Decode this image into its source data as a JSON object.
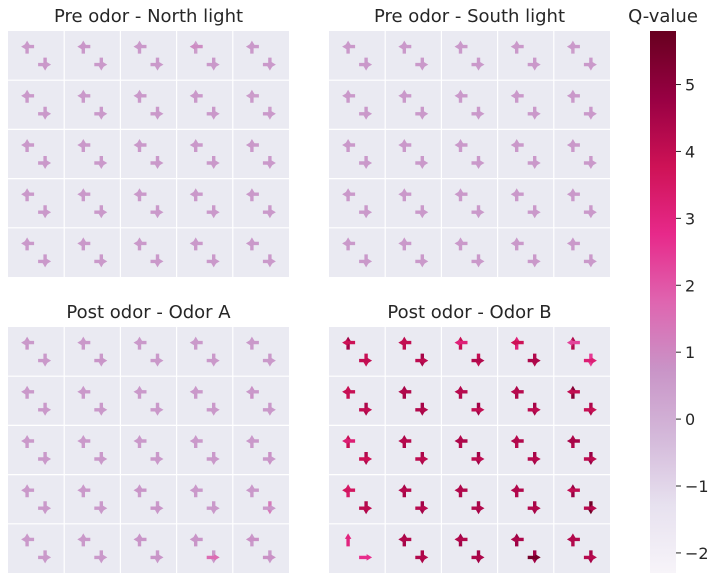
{
  "colorbar": {
    "title": "Q-value",
    "ticks": [
      -2,
      -1,
      0,
      1,
      2,
      3,
      4,
      5
    ],
    "tick_labels": [
      "−2",
      "−1",
      "0",
      "1",
      "2",
      "3",
      "4",
      "5"
    ],
    "range": [
      -2.3,
      5.8
    ],
    "colormap": "PuRd",
    "colors": [
      "#f7f4f9",
      "#e7e1ef",
      "#d4b9da",
      "#c994c7",
      "#df65b0",
      "#e7298a",
      "#ce1256",
      "#980043",
      "#67001f"
    ]
  },
  "chart_data": [
    {
      "type": "heatmap",
      "title": "Pre odor - North light",
      "rows": 5,
      "cols": 5,
      "cells": [
        [
          [
            0.6,
            0.7,
            0.6,
            0.6
          ],
          [
            0.6,
            0.6,
            0.7,
            0.6
          ],
          [
            0.6,
            0.6,
            0.6,
            0.6
          ],
          [
            0.5,
            0.6,
            0.9,
            0.6
          ],
          [
            0.6,
            0.6,
            0.6,
            0.6
          ]
        ],
        [
          [
            0.6,
            0.6,
            0.6,
            0.6
          ],
          [
            0.6,
            0.6,
            0.6,
            0.6
          ],
          [
            0.6,
            0.6,
            0.6,
            0.6
          ],
          [
            0.6,
            0.6,
            0.6,
            0.6
          ],
          [
            0.6,
            0.5,
            0.5,
            0.6
          ]
        ],
        [
          [
            0.6,
            0.6,
            0.6,
            0.6
          ],
          [
            0.6,
            0.6,
            0.6,
            0.6
          ],
          [
            0.6,
            0.6,
            0.6,
            0.6
          ],
          [
            0.6,
            0.6,
            0.6,
            0.6
          ],
          [
            0.6,
            0.6,
            0.6,
            0.6
          ]
        ],
        [
          [
            0.6,
            0.6,
            0.6,
            0.6
          ],
          [
            0.6,
            0.6,
            0.6,
            0.6
          ],
          [
            0.6,
            0.6,
            0.6,
            0.6
          ],
          [
            0.6,
            0.6,
            0.6,
            0.6
          ],
          [
            0.6,
            0.6,
            0.6,
            0.6
          ]
        ],
        [
          [
            0.6,
            0.6,
            0.6,
            0.6
          ],
          [
            0.6,
            0.6,
            0.6,
            0.6
          ],
          [
            0.6,
            0.6,
            0.6,
            0.6
          ],
          [
            0.6,
            0.6,
            0.6,
            0.6
          ],
          [
            0.6,
            0.6,
            0.6,
            0.6
          ]
        ]
      ]
    },
    {
      "type": "heatmap",
      "title": "Pre odor - South light",
      "rows": 5,
      "cols": 5,
      "cells": [
        [
          [
            0.6,
            0.6,
            0.6,
            0.6
          ],
          [
            0.6,
            0.6,
            0.6,
            0.6
          ],
          [
            0.6,
            0.6,
            0.6,
            0.6
          ],
          [
            0.6,
            0.6,
            0.6,
            0.6
          ],
          [
            0.5,
            0.6,
            0.6,
            0.6
          ]
        ],
        [
          [
            0.6,
            0.6,
            0.6,
            0.6
          ],
          [
            0.6,
            0.6,
            0.6,
            0.6
          ],
          [
            0.6,
            0.6,
            0.6,
            0.6
          ],
          [
            0.6,
            0.6,
            0.6,
            0.6
          ],
          [
            0.6,
            0.6,
            0.6,
            0.6
          ]
        ],
        [
          [
            0.6,
            0.6,
            0.6,
            0.6
          ],
          [
            0.6,
            0.6,
            0.6,
            0.6
          ],
          [
            0.6,
            0.6,
            0.6,
            0.6
          ],
          [
            0.6,
            0.6,
            0.6,
            0.6
          ],
          [
            0.6,
            0.6,
            0.6,
            0.6
          ]
        ],
        [
          [
            0.6,
            0.6,
            0.6,
            0.6
          ],
          [
            0.6,
            0.6,
            0.6,
            0.6
          ],
          [
            0.6,
            0.6,
            0.6,
            0.6
          ],
          [
            0.6,
            0.6,
            0.6,
            0.6
          ],
          [
            0.6,
            0.6,
            0.6,
            0.6
          ]
        ],
        [
          [
            0.6,
            0.6,
            0.6,
            0.6
          ],
          [
            0.6,
            0.6,
            0.6,
            0.6
          ],
          [
            0.6,
            0.6,
            0.6,
            0.6
          ],
          [
            0.6,
            0.6,
            0.6,
            0.6
          ],
          [
            0.6,
            0.6,
            0.6,
            0.6
          ]
        ]
      ]
    },
    {
      "type": "heatmap",
      "title": "Post odor - Odor A",
      "rows": 5,
      "cols": 5,
      "cells": [
        [
          [
            0.7,
            0.6,
            0.6,
            0.6
          ],
          [
            0.6,
            0.6,
            0.6,
            0.7
          ],
          [
            0.6,
            0.6,
            0.6,
            0.6
          ],
          [
            0.6,
            0.6,
            0.6,
            0.6
          ],
          [
            0.6,
            0.6,
            0.6,
            0.6
          ]
        ],
        [
          [
            0.6,
            0.6,
            0.6,
            0.6
          ],
          [
            0.6,
            0.6,
            0.6,
            0.6
          ],
          [
            0.6,
            0.6,
            0.6,
            0.6
          ],
          [
            0.6,
            0.6,
            0.6,
            0.6
          ],
          [
            0.8,
            0.6,
            0.6,
            0.6
          ]
        ],
        [
          [
            0.6,
            0.6,
            0.6,
            0.6
          ],
          [
            0.6,
            0.6,
            0.6,
            0.6
          ],
          [
            0.6,
            0.6,
            0.6,
            0.6
          ],
          [
            0.6,
            0.6,
            0.6,
            0.6
          ],
          [
            0.6,
            0.8,
            0.6,
            0.6
          ]
        ],
        [
          [
            0.6,
            0.6,
            0.6,
            0.6
          ],
          [
            0.6,
            0.6,
            0.6,
            0.6
          ],
          [
            0.6,
            0.6,
            0.7,
            0.7
          ],
          [
            0.6,
            0.6,
            0.6,
            0.6
          ],
          [
            0.6,
            1.3,
            0.6,
            0.6
          ]
        ],
        [
          [
            0.6,
            0.6,
            0.6,
            0.6
          ],
          [
            0.6,
            0.6,
            0.6,
            0.6
          ],
          [
            0.7,
            0.6,
            0.7,
            0.7
          ],
          [
            0.7,
            0.6,
            0.7,
            1.6
          ],
          [
            0.6,
            0.6,
            0.8,
            0.8
          ]
        ]
      ]
    },
    {
      "type": "heatmap",
      "title": "Post odor - Odor B",
      "rows": 5,
      "cols": 5,
      "cells": [
        [
          [
            4.6,
            3.9,
            3.8,
            4.0
          ],
          [
            4.1,
            4.5,
            4.0,
            4.1
          ],
          [
            3.9,
            4.0,
            3.1,
            4.3
          ],
          [
            3.1,
            4.3,
            3.8,
            4.4
          ],
          [
            4.3,
            2.5,
            2.3,
            3.2
          ]
        ],
        [
          [
            3.9,
            4.4,
            3.9,
            4.0
          ],
          [
            4.5,
            4.5,
            4.3,
            4.3
          ],
          [
            4.3,
            4.6,
            4.2,
            4.0
          ],
          [
            4.4,
            4.5,
            4.2,
            4.1
          ],
          [
            5.2,
            4.4,
            4.0,
            3.9
          ]
        ],
        [
          [
            3.9,
            4.3,
            3.2,
            3.8
          ],
          [
            4.4,
            4.4,
            4.2,
            4.1
          ],
          [
            4.3,
            4.6,
            4.4,
            4.1
          ],
          [
            4.2,
            4.5,
            4.3,
            4.2
          ],
          [
            4.4,
            4.8,
            4.5,
            4.1
          ]
        ],
        [
          [
            3.4,
            4.3,
            3.6,
            4.1
          ],
          [
            4.5,
            4.6,
            4.2,
            4.2
          ],
          [
            4.4,
            4.5,
            4.3,
            4.3
          ],
          [
            4.3,
            4.5,
            4.3,
            4.3
          ],
          [
            4.8,
            5.6,
            4.0,
            4.2
          ]
        ],
        [
          [
            3.0,
            0.0,
            0.0,
            2.7
          ],
          [
            4.5,
            4.4,
            4.3,
            4.3
          ],
          [
            4.6,
            4.6,
            4.3,
            4.4
          ],
          [
            4.7,
            4.6,
            4.4,
            5.5
          ],
          [
            4.3,
            4.5,
            4.3,
            4.2
          ]
        ]
      ]
    }
  ]
}
